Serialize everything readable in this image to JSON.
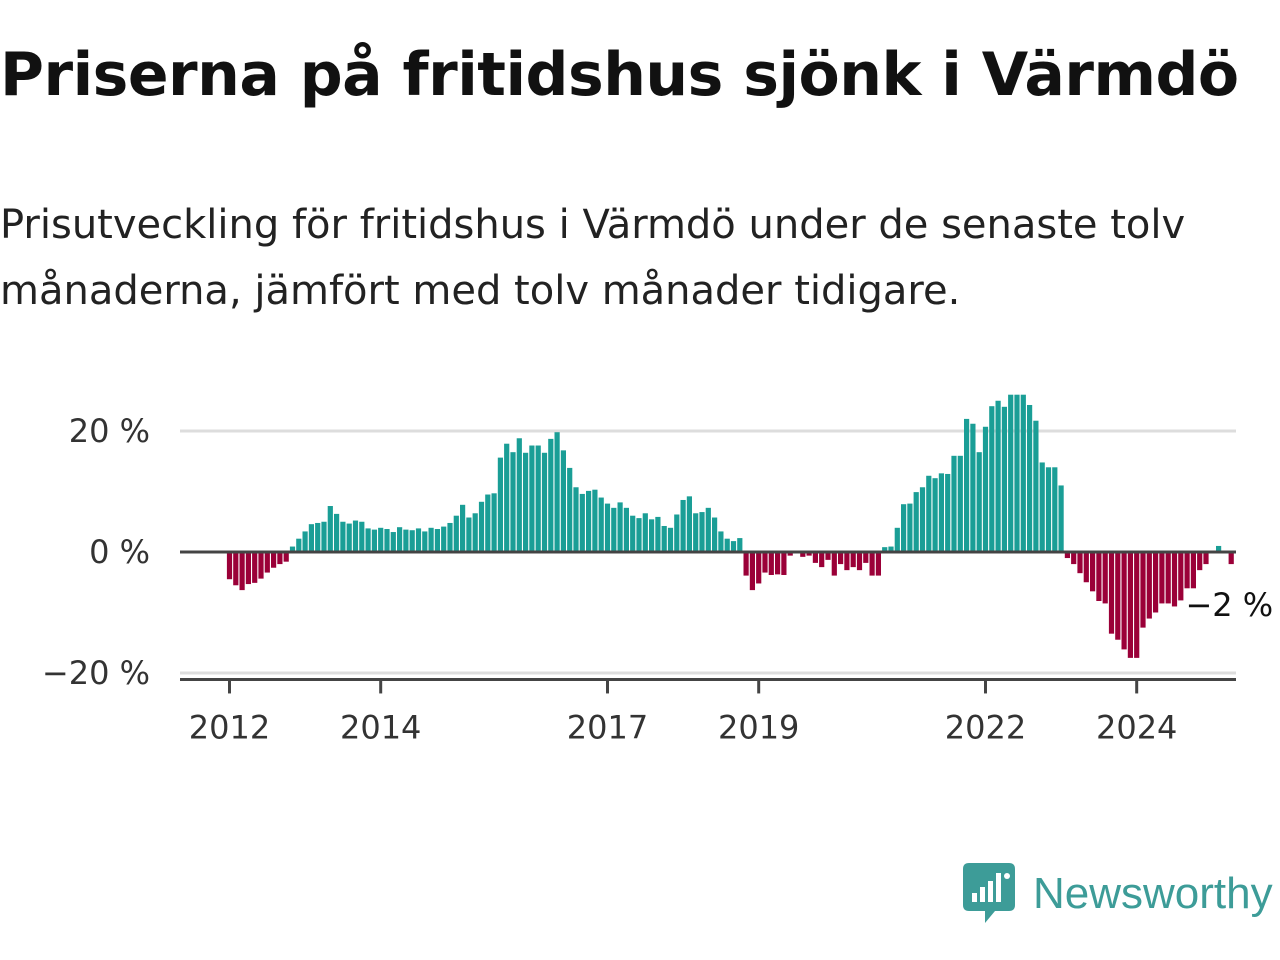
{
  "header": {
    "title": "Priserna på fritidshus sjönk i Värmdö",
    "subtitle": "Prisutveckling för fritidshus i Värmdö under de senaste tolv månaderna, jämfört med tolv månader tidigare."
  },
  "brand": {
    "name": "Newsworthy"
  },
  "colors": {
    "positive": "#1a9e96",
    "negative": "#9b0038",
    "axis": "#444444",
    "grid": "#dddddd",
    "brand": "#3d9c98"
  },
  "chart_data": {
    "type": "bar",
    "title": "Priserna på fritidshus sjönk i Värmdö",
    "subtitle": "Prisutveckling för fritidshus i Värmdö under de senaste tolv månaderna, jämfört med tolv månader tidigare.",
    "xlabel": "",
    "ylabel": "",
    "ylim": [
      -21,
      27
    ],
    "x_start": {
      "year": 2012,
      "month": 1
    },
    "y_ticks": [
      {
        "value": 20,
        "label": "20 %"
      },
      {
        "value": 0,
        "label": "0 %"
      },
      {
        "value": -20,
        "label": "−20 %"
      }
    ],
    "x_ticks": [
      {
        "year": 2012,
        "label": "2012"
      },
      {
        "year": 2014,
        "label": "2014"
      },
      {
        "year": 2017,
        "label": "2017"
      },
      {
        "year": 2019,
        "label": "2019"
      },
      {
        "year": 2022,
        "label": "2022"
      },
      {
        "year": 2024,
        "label": "2024"
      }
    ],
    "last_value_label": "−2 %",
    "values": [
      -4.5,
      -5.5,
      -6.3,
      -5.3,
      -5.1,
      -4.4,
      -3.4,
      -2.6,
      -2.0,
      -1.6,
      0.9,
      2.2,
      3.4,
      4.6,
      4.8,
      5.0,
      7.6,
      6.3,
      5.0,
      4.7,
      5.2,
      5.0,
      3.9,
      3.7,
      4.0,
      3.8,
      3.3,
      4.1,
      3.7,
      3.6,
      3.9,
      3.4,
      4.0,
      3.8,
      4.2,
      4.8,
      6.0,
      7.8,
      5.7,
      6.4,
      8.3,
      9.5,
      9.7,
      15.6,
      17.9,
      16.5,
      18.8,
      16.4,
      17.6,
      17.6,
      16.4,
      18.7,
      19.8,
      16.8,
      13.9,
      10.7,
      9.6,
      10.1,
      10.3,
      9.0,
      8.0,
      7.3,
      8.2,
      7.3,
      6.0,
      5.6,
      6.4,
      5.4,
      5.8,
      4.3,
      4.0,
      6.2,
      8.6,
      9.2,
      6.4,
      6.6,
      7.3,
      5.7,
      3.4,
      2.2,
      1.8,
      2.3,
      -3.9,
      -6.3,
      -5.2,
      -3.4,
      -3.8,
      -3.7,
      -3.8,
      -0.6,
      -0.1,
      -0.8,
      -0.6,
      -1.8,
      -2.5,
      -1.3,
      -3.9,
      -2.0,
      -3.0,
      -2.5,
      -3.0,
      -1.8,
      -3.9,
      -3.9,
      0.8,
      0.9,
      4.0,
      7.9,
      8.0,
      9.9,
      10.7,
      12.6,
      12.2,
      13.0,
      12.9,
      15.9,
      15.9,
      22.0,
      21.2,
      16.5,
      20.7,
      24.1,
      25.0,
      24.0,
      26.0,
      26.0,
      26.0,
      24.3,
      21.7,
      14.8,
      14.0,
      14.0,
      11.0,
      -1.0,
      -2.0,
      -3.5,
      -5.0,
      -6.5,
      -8.1,
      -8.5,
      -13.5,
      -14.5,
      -16.1,
      -17.5,
      -17.5,
      -12.5,
      -11.0,
      -10.0,
      -8.5,
      -8.5,
      -9.0,
      -8.0,
      -6.0,
      -6.0,
      -3.0,
      -2.0,
      0.0,
      1.0,
      0.0,
      -2.0
    ]
  }
}
